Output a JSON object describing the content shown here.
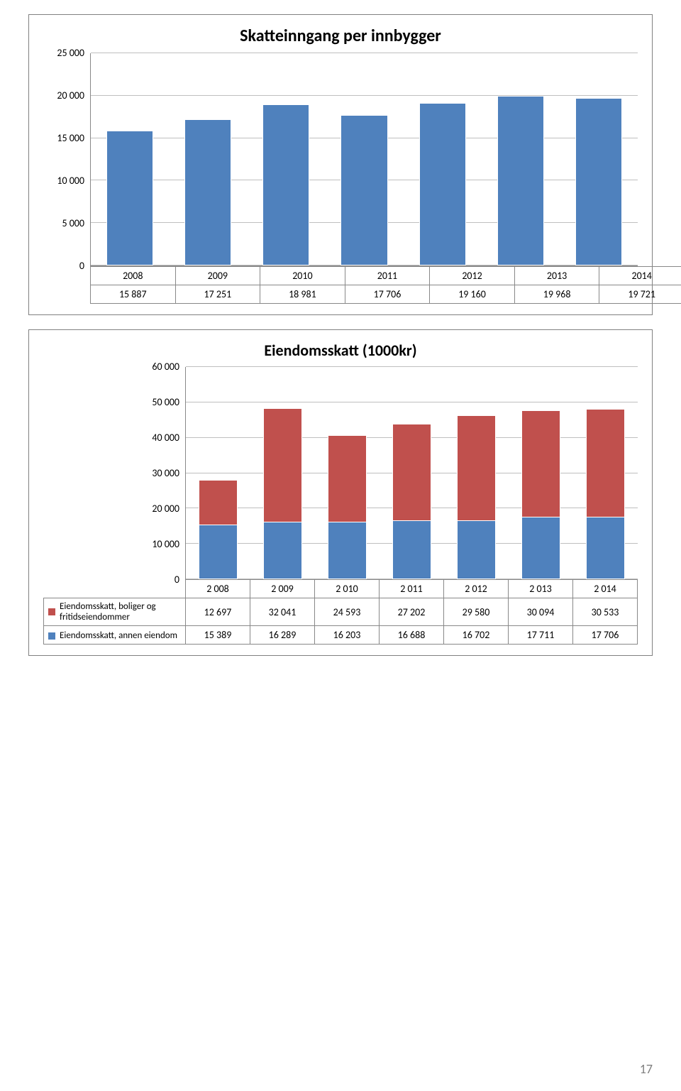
{
  "page_number": "17",
  "chart1": {
    "type": "bar",
    "title": "Skatteinngang per innbygger",
    "title_fontsize": 24,
    "categories": [
      "2008",
      "2009",
      "2010",
      "2011",
      "2012",
      "2013",
      "2014"
    ],
    "values": [
      15887,
      17251,
      18981,
      17706,
      19160,
      19968,
      19721
    ],
    "bar_color": "#4f81bd",
    "ymin": 0,
    "ymax": 25000,
    "ytick_step": 5000,
    "ytick_labels": [
      "0",
      "5 000",
      "10 000",
      "15 000",
      "20 000",
      "25 000"
    ],
    "values_display": [
      "15 887",
      "17 251",
      "18 981",
      "17 706",
      "19 160",
      "19 968",
      "19 721"
    ],
    "background_color": "#ffffff",
    "grid_color": "#bfbfbf",
    "label_fontsize": 14
  },
  "chart2": {
    "type": "stacked-bar",
    "title": "Eiendomsskatt (1000kr)",
    "title_fontsize": 22,
    "categories": [
      "2 008",
      "2 009",
      "2 010",
      "2 011",
      "2 012",
      "2 013",
      "2 014"
    ],
    "series": [
      {
        "name": "Eiendomsskatt, boliger og fritidseiendommer",
        "color": "#c0504d",
        "values": [
          12697,
          32041,
          24593,
          27202,
          29580,
          30094,
          30533
        ],
        "values_display": [
          "12 697",
          "32 041",
          "24 593",
          "27 202",
          "29 580",
          "30 094",
          "30 533"
        ]
      },
      {
        "name": "Eiendomsskatt, annen eiendom",
        "color": "#4f81bd",
        "values": [
          15389,
          16289,
          16203,
          16688,
          16702,
          17711,
          17706
        ],
        "values_display": [
          "15 389",
          "16 289",
          "16 203",
          "16 688",
          "16 702",
          "17 711",
          "17 706"
        ]
      }
    ],
    "ymin": 0,
    "ymax": 60000,
    "ytick_step": 10000,
    "ytick_labels": [
      "0",
      "10 000",
      "20 000",
      "30 000",
      "40 000",
      "50 000",
      "60 000"
    ],
    "background_color": "#ffffff",
    "grid_color": "#bfbfbf",
    "label_fontsize": 14
  }
}
